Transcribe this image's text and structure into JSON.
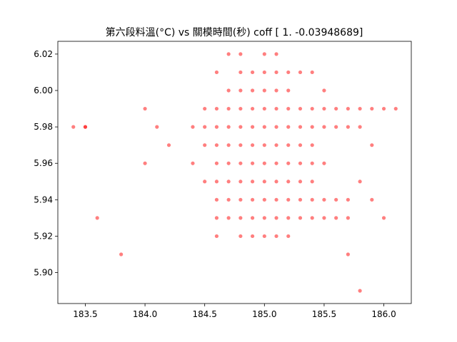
{
  "chart_data": {
    "type": "scatter",
    "title": "第六段料溫(°C) vs 關模時間(秒) coff [ 1.        -0.03948689]",
    "xlabel": "",
    "ylabel": "",
    "xlim": [
      183.27,
      186.23
    ],
    "ylim": [
      5.883,
      6.027
    ],
    "xticks": [
      "183.5",
      "184.0",
      "184.5",
      "185.0",
      "185.5",
      "186.0"
    ],
    "yticks": [
      "5.90",
      "5.92",
      "5.94",
      "5.96",
      "5.98",
      "6.00",
      "6.02"
    ],
    "grid": false,
    "marker_color": "#ff0000",
    "marker_opacity": 0.5,
    "points": [
      [
        183.4,
        5.98
      ],
      [
        183.5,
        5.98
      ],
      [
        183.5,
        5.98
      ],
      [
        183.6,
        5.93
      ],
      [
        183.8,
        5.91
      ],
      [
        184.0,
        5.99
      ],
      [
        184.0,
        5.96
      ],
      [
        184.1,
        5.98
      ],
      [
        184.2,
        5.97
      ],
      [
        184.4,
        5.98
      ],
      [
        184.4,
        5.96
      ],
      [
        184.5,
        5.99
      ],
      [
        184.5,
        5.98
      ],
      [
        184.5,
        5.97
      ],
      [
        184.5,
        5.95
      ],
      [
        184.6,
        6.01
      ],
      [
        184.6,
        5.99
      ],
      [
        184.6,
        5.98
      ],
      [
        184.6,
        5.97
      ],
      [
        184.6,
        5.96
      ],
      [
        184.6,
        5.95
      ],
      [
        184.6,
        5.94
      ],
      [
        184.6,
        5.93
      ],
      [
        184.6,
        5.92
      ],
      [
        184.7,
        6.02
      ],
      [
        184.7,
        6.0
      ],
      [
        184.7,
        5.99
      ],
      [
        184.7,
        5.98
      ],
      [
        184.7,
        5.97
      ],
      [
        184.7,
        5.96
      ],
      [
        184.7,
        5.95
      ],
      [
        184.7,
        5.94
      ],
      [
        184.7,
        5.93
      ],
      [
        184.8,
        6.02
      ],
      [
        184.8,
        6.01
      ],
      [
        184.8,
        6.0
      ],
      [
        184.8,
        5.99
      ],
      [
        184.8,
        5.98
      ],
      [
        184.8,
        5.97
      ],
      [
        184.8,
        5.96
      ],
      [
        184.8,
        5.95
      ],
      [
        184.8,
        5.94
      ],
      [
        184.8,
        5.93
      ],
      [
        184.8,
        5.92
      ],
      [
        184.9,
        6.01
      ],
      [
        184.9,
        6.0
      ],
      [
        184.9,
        5.99
      ],
      [
        184.9,
        5.98
      ],
      [
        184.9,
        5.97
      ],
      [
        184.9,
        5.96
      ],
      [
        184.9,
        5.95
      ],
      [
        184.9,
        5.94
      ],
      [
        184.9,
        5.93
      ],
      [
        184.9,
        5.92
      ],
      [
        185.0,
        6.02
      ],
      [
        185.0,
        6.01
      ],
      [
        185.0,
        6.0
      ],
      [
        185.0,
        5.99
      ],
      [
        185.0,
        5.98
      ],
      [
        185.0,
        5.97
      ],
      [
        185.0,
        5.96
      ],
      [
        185.0,
        5.95
      ],
      [
        185.0,
        5.94
      ],
      [
        185.0,
        5.93
      ],
      [
        185.0,
        5.92
      ],
      [
        185.1,
        6.02
      ],
      [
        185.1,
        6.01
      ],
      [
        185.1,
        6.0
      ],
      [
        185.1,
        5.99
      ],
      [
        185.1,
        5.98
      ],
      [
        185.1,
        5.97
      ],
      [
        185.1,
        5.96
      ],
      [
        185.1,
        5.95
      ],
      [
        185.1,
        5.94
      ],
      [
        185.1,
        5.93
      ],
      [
        185.1,
        5.92
      ],
      [
        185.2,
        6.01
      ],
      [
        185.2,
        6.0
      ],
      [
        185.2,
        5.99
      ],
      [
        185.2,
        5.98
      ],
      [
        185.2,
        5.97
      ],
      [
        185.2,
        5.96
      ],
      [
        185.2,
        5.95
      ],
      [
        185.2,
        5.94
      ],
      [
        185.2,
        5.93
      ],
      [
        185.2,
        5.92
      ],
      [
        185.3,
        6.01
      ],
      [
        185.3,
        5.99
      ],
      [
        185.3,
        5.98
      ],
      [
        185.3,
        5.97
      ],
      [
        185.3,
        5.96
      ],
      [
        185.3,
        5.95
      ],
      [
        185.3,
        5.94
      ],
      [
        185.3,
        5.93
      ],
      [
        185.4,
        6.01
      ],
      [
        185.4,
        5.99
      ],
      [
        185.4,
        5.98
      ],
      [
        185.4,
        5.97
      ],
      [
        185.4,
        5.96
      ],
      [
        185.4,
        5.95
      ],
      [
        185.4,
        5.94
      ],
      [
        185.4,
        5.93
      ],
      [
        185.5,
        6.0
      ],
      [
        185.5,
        5.99
      ],
      [
        185.5,
        5.98
      ],
      [
        185.5,
        5.96
      ],
      [
        185.5,
        5.94
      ],
      [
        185.5,
        5.93
      ],
      [
        185.6,
        5.99
      ],
      [
        185.6,
        5.98
      ],
      [
        185.6,
        5.94
      ],
      [
        185.6,
        5.93
      ],
      [
        185.7,
        5.99
      ],
      [
        185.7,
        5.98
      ],
      [
        185.7,
        5.94
      ],
      [
        185.7,
        5.93
      ],
      [
        185.7,
        5.91
      ],
      [
        185.8,
        5.99
      ],
      [
        185.8,
        5.98
      ],
      [
        185.8,
        5.95
      ],
      [
        185.8,
        5.89
      ],
      [
        185.9,
        5.99
      ],
      [
        185.9,
        5.97
      ],
      [
        185.9,
        5.94
      ],
      [
        186.0,
        5.99
      ],
      [
        186.0,
        5.93
      ],
      [
        186.1,
        5.99
      ]
    ]
  }
}
